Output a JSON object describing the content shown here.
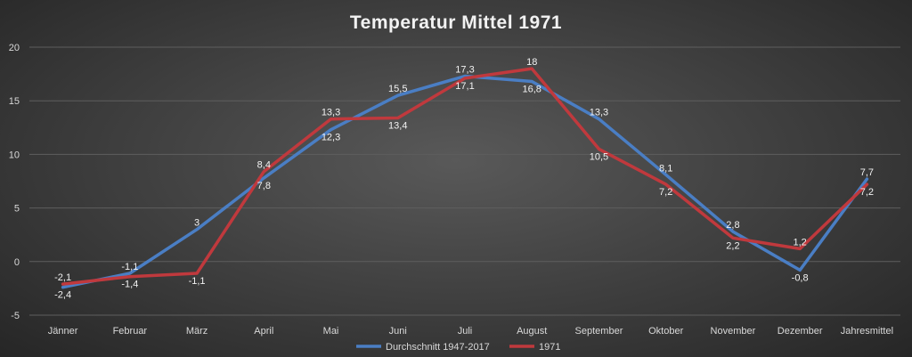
{
  "chart_data": {
    "type": "line",
    "title": "Temperatur Mittel 1971",
    "xlabel": "",
    "ylabel": "",
    "ylim": [
      -5,
      20
    ],
    "yticks": [
      -5,
      0,
      5,
      10,
      15,
      20
    ],
    "grid": true,
    "legend_position": "bottom",
    "categories": [
      "Jänner",
      "Februar",
      "März",
      "April",
      "Mai",
      "Juni",
      "Juli",
      "August",
      "September",
      "Oktober",
      "November",
      "Dezember",
      "Jahresmittel"
    ],
    "series": [
      {
        "name": "Durchschnitt 1947-2017",
        "color": "#4a7ec4",
        "values": [
          -2.4,
          -1.1,
          3,
          7.8,
          12.3,
          15.5,
          17.3,
          16.8,
          13.3,
          8.1,
          2.8,
          -0.8,
          7.7
        ],
        "labels": [
          "-2,4",
          "-1,1",
          "3",
          "7,8",
          "12,3",
          "15,5",
          "17,3",
          "16,8",
          "13,3",
          "8,1",
          "2,8",
          "-0,8",
          "7,7"
        ]
      },
      {
        "name": "1971",
        "color": "#c0393d",
        "values": [
          -2.1,
          -1.4,
          -1.1,
          8.4,
          13.3,
          13.4,
          17.1,
          18,
          10.5,
          7.2,
          2.2,
          1.2,
          7.2
        ],
        "labels": [
          "-2,1",
          "-1,4",
          "-1,1",
          "8,4",
          "13,3",
          "13,4",
          "17,1",
          "18",
          "10,5",
          "7,2",
          "2,2",
          "1,2",
          "7,2"
        ]
      }
    ]
  }
}
